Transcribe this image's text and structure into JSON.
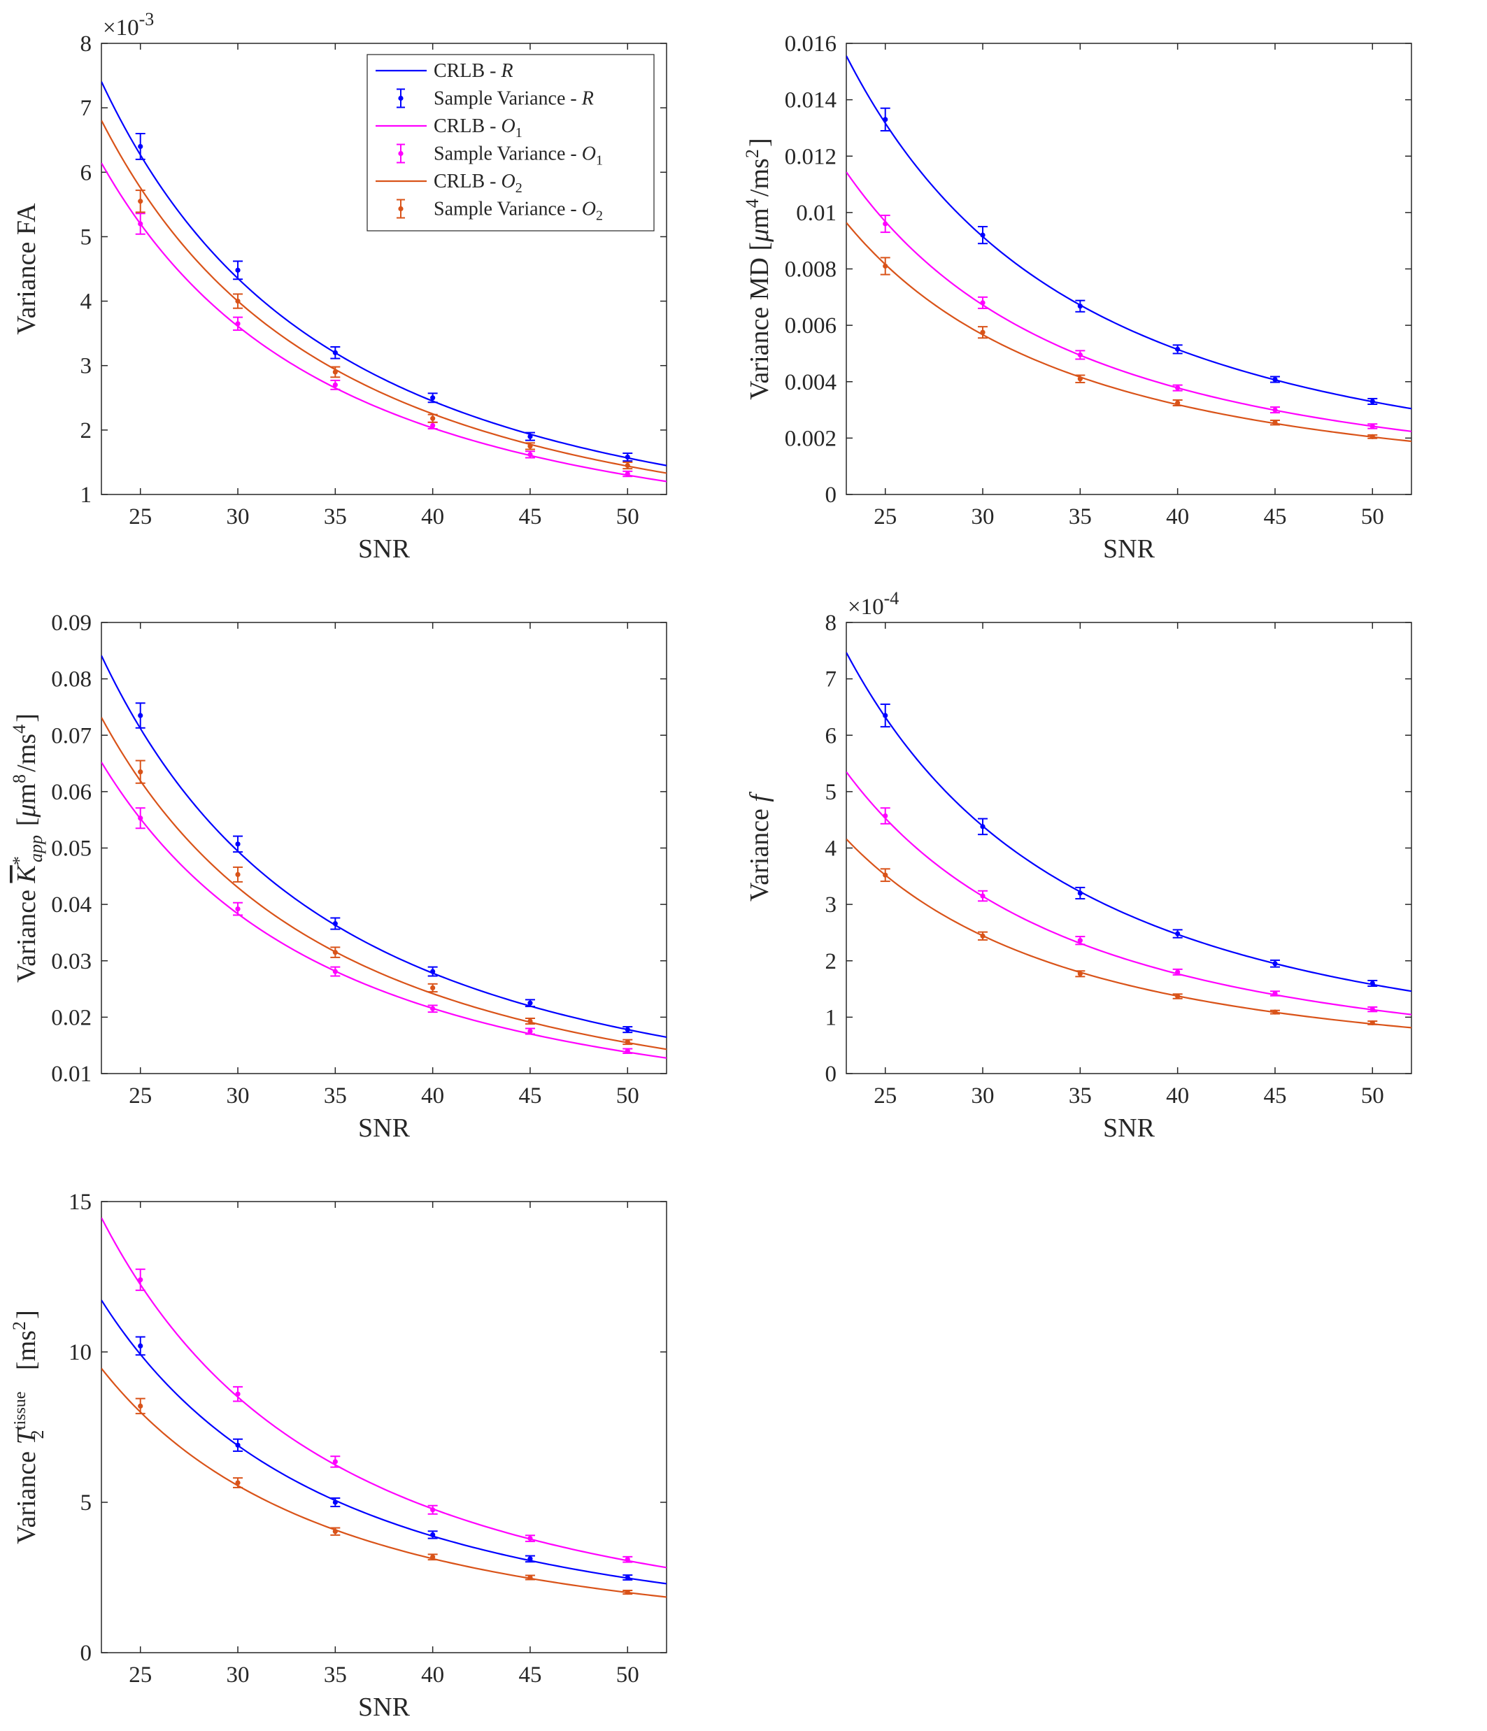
{
  "series_styles": [
    {
      "key": "R",
      "color": "#0000FF"
    },
    {
      "key": "O1",
      "color": "#FF00FF"
    },
    {
      "key": "O2",
      "color": "#D95319"
    }
  ],
  "legend": {
    "entries": [
      {
        "prefix": "CRLB - ",
        "sym": "R",
        "sub": "",
        "kind": "line",
        "series": 0
      },
      {
        "prefix": "Sample Variance - ",
        "sym": "R",
        "sub": "",
        "kind": "errorbar",
        "series": 0
      },
      {
        "prefix": "CRLB - ",
        "sym": "O",
        "sub": "1",
        "kind": "line",
        "series": 1
      },
      {
        "prefix": "Sample Variance - ",
        "sym": "O",
        "sub": "1",
        "kind": "errorbar",
        "series": 1
      },
      {
        "prefix": "CRLB - ",
        "sym": "O",
        "sub": "2",
        "kind": "line",
        "series": 2
      },
      {
        "prefix": "Sample Variance - ",
        "sym": "O",
        "sub": "2",
        "kind": "errorbar",
        "series": 2
      }
    ]
  },
  "chart_data": [
    {
      "type": "line",
      "id": "fa",
      "xlabel": "SNR",
      "ylabel_parts": [
        {
          "t": "Variance FA"
        }
      ],
      "xlim": [
        23,
        52
      ],
      "ylim": [
        1,
        8
      ],
      "xticks": [
        25,
        30,
        35,
        40,
        45,
        50
      ],
      "yticks": [
        1,
        2,
        3,
        4,
        5,
        6,
        7,
        8
      ],
      "ytick_labels": [
        "1",
        "2",
        "3",
        "4",
        "5",
        "6",
        "7",
        "8"
      ],
      "exponent": "-3",
      "has_legend": true,
      "snr_points": [
        25,
        30,
        35,
        40,
        45,
        50
      ],
      "series": [
        {
          "name": "R",
          "crlb_coef": 3918,
          "sample": [
            6.4,
            4.48,
            3.2,
            2.5,
            1.9,
            1.58
          ],
          "err": [
            0.2,
            0.14,
            0.09,
            0.07,
            0.06,
            0.06
          ]
        },
        {
          "name": "O1",
          "crlb_coef": 3250,
          "sample": [
            5.2,
            3.65,
            2.7,
            2.07,
            1.62,
            1.32
          ],
          "err": [
            0.16,
            0.1,
            0.07,
            0.05,
            0.05,
            0.04
          ]
        },
        {
          "name": "O2",
          "crlb_coef": 3600,
          "sample": [
            5.55,
            4.0,
            2.9,
            2.18,
            1.75,
            1.45
          ],
          "err": [
            0.17,
            0.11,
            0.08,
            0.06,
            0.05,
            0.05
          ]
        }
      ]
    },
    {
      "type": "line",
      "id": "md",
      "xlabel": "SNR",
      "ylabel_parts": [
        {
          "t": "Variance MD [",
          "i": false
        },
        {
          "t": "μ",
          "i": true
        },
        {
          "t": "m",
          "i": false
        },
        {
          "t": "4",
          "sup": true
        },
        {
          "t": "/ms",
          "i": false
        },
        {
          "t": "2",
          "sup": true
        },
        {
          "t": "]",
          "i": false
        }
      ],
      "xlim": [
        23,
        52
      ],
      "ylim": [
        0,
        0.016
      ],
      "xticks": [
        25,
        30,
        35,
        40,
        45,
        50
      ],
      "yticks": [
        0,
        0.002,
        0.004,
        0.006,
        0.008,
        0.01,
        0.012,
        0.014,
        0.016
      ],
      "ytick_labels": [
        "0",
        "0.002",
        "0.004",
        "0.006",
        "0.008",
        "0.01",
        "0.012",
        "0.014",
        "0.016"
      ],
      "exponent": "",
      "has_legend": false,
      "snr_points": [
        25,
        30,
        35,
        40,
        45,
        50
      ],
      "series": [
        {
          "name": "R",
          "crlb_coef": 8.23,
          "sample": [
            0.0133,
            0.0092,
            0.00668,
            0.00515,
            0.00408,
            0.0033
          ],
          "err": [
            0.0004,
            0.0003,
            0.0002,
            0.00015,
            0.0001,
            0.0001
          ]
        },
        {
          "name": "O1",
          "crlb_coef": 6.05,
          "sample": [
            0.0096,
            0.0068,
            0.00495,
            0.00378,
            0.003,
            0.00242
          ],
          "err": [
            0.0003,
            0.0002,
            0.00015,
            0.0001,
            0.0001,
            8e-05
          ]
        },
        {
          "name": "O2",
          "crlb_coef": 5.1,
          "sample": [
            0.0081,
            0.00575,
            0.0041,
            0.00325,
            0.00255,
            0.00205
          ],
          "err": [
            0.0003,
            0.0002,
            0.00013,
            0.0001,
            8e-05,
            6e-05
          ]
        }
      ]
    },
    {
      "type": "line",
      "id": "kapp",
      "xlabel": "SNR",
      "ylabel_parts": [
        {
          "t": "Variance ",
          "i": false
        },
        {
          "t": "K",
          "i": true,
          "bar": true
        },
        {
          "t": "*",
          "sup": true
        },
        {
          "t": "app",
          "sub": true,
          "i": true
        },
        {
          "t": "  [",
          "i": false
        },
        {
          "t": "μ",
          "i": true
        },
        {
          "t": "m",
          "i": false
        },
        {
          "t": "8",
          "sup": true
        },
        {
          "t": "/ms",
          "i": false
        },
        {
          "t": "4",
          "sup": true
        },
        {
          "t": "]",
          "i": false
        }
      ],
      "xlim": [
        23,
        52
      ],
      "ylim": [
        0.01,
        0.09
      ],
      "xticks": [
        25,
        30,
        35,
        40,
        45,
        50
      ],
      "yticks": [
        0.01,
        0.02,
        0.03,
        0.04,
        0.05,
        0.06,
        0.07,
        0.08,
        0.09
      ],
      "ytick_labels": [
        "0.01",
        "0.02",
        "0.03",
        "0.04",
        "0.05",
        "0.06",
        "0.07",
        "0.08",
        "0.09"
      ],
      "exponent": "",
      "has_legend": false,
      "snr_points": [
        25,
        30,
        35,
        40,
        45,
        50
      ],
      "series": [
        {
          "name": "R",
          "crlb_coef": 44.5,
          "sample": [
            0.0735,
            0.0507,
            0.0366,
            0.0281,
            0.0225,
            0.0178
          ],
          "err": [
            0.0022,
            0.0014,
            0.001,
            0.0008,
            0.0006,
            0.0005
          ]
        },
        {
          "name": "O1",
          "crlb_coef": 34.5,
          "sample": [
            0.0553,
            0.0392,
            0.0281,
            0.0215,
            0.0175,
            0.014
          ],
          "err": [
            0.0018,
            0.0011,
            0.0008,
            0.0006,
            0.0005,
            0.0004
          ]
        },
        {
          "name": "O2",
          "crlb_coef": 38.7,
          "sample": [
            0.0635,
            0.0453,
            0.0315,
            0.0252,
            0.0193,
            0.0156
          ],
          "err": [
            0.002,
            0.0013,
            0.0009,
            0.0007,
            0.0005,
            0.0004
          ]
        }
      ]
    },
    {
      "type": "line",
      "id": "f",
      "xlabel": "SNR",
      "ylabel_parts": [
        {
          "t": "Variance ",
          "i": false
        },
        {
          "t": "f",
          "i": true
        }
      ],
      "xlim": [
        23,
        52
      ],
      "ylim": [
        0,
        8
      ],
      "xticks": [
        25,
        30,
        35,
        40,
        45,
        50
      ],
      "yticks": [
        0,
        1,
        2,
        3,
        4,
        5,
        6,
        7,
        8
      ],
      "ytick_labels": [
        "0",
        "1",
        "2",
        "3",
        "4",
        "5",
        "6",
        "7",
        "8"
      ],
      "exponent": "-4",
      "has_legend": false,
      "snr_points": [
        25,
        30,
        35,
        40,
        45,
        50
      ],
      "series": [
        {
          "name": "R",
          "crlb_coef": 3950,
          "sample": [
            6.35,
            4.38,
            3.2,
            2.48,
            1.95,
            1.6
          ],
          "err": [
            0.2,
            0.14,
            0.1,
            0.07,
            0.06,
            0.05
          ]
        },
        {
          "name": "O1",
          "crlb_coef": 2830,
          "sample": [
            4.57,
            3.15,
            2.36,
            1.8,
            1.42,
            1.14
          ],
          "err": [
            0.14,
            0.09,
            0.07,
            0.05,
            0.04,
            0.04
          ]
        },
        {
          "name": "O2",
          "crlb_coef": 2200,
          "sample": [
            3.52,
            2.44,
            1.77,
            1.37,
            1.09,
            0.9
          ],
          "err": [
            0.11,
            0.07,
            0.05,
            0.04,
            0.03,
            0.03
          ]
        }
      ]
    },
    {
      "type": "line",
      "id": "t2",
      "xlabel": "SNR",
      "ylabel_parts": [
        {
          "t": "Variance ",
          "i": false
        },
        {
          "t": "T",
          "i": true
        },
        {
          "t": "tissue",
          "supsub": "2"
        },
        {
          "t": " [ms",
          "i": false
        },
        {
          "t": "2",
          "sup": true
        },
        {
          "t": "]",
          "i": false
        }
      ],
      "xlim": [
        23,
        52
      ],
      "ylim": [
        0,
        15
      ],
      "xticks": [
        25,
        30,
        35,
        40,
        45,
        50
      ],
      "yticks": [
        0,
        5,
        10,
        15
      ],
      "ytick_labels": [
        "0",
        "5",
        "10",
        "15"
      ],
      "exponent": "",
      "has_legend": false,
      "snr_points": [
        25,
        30,
        35,
        40,
        45,
        50
      ],
      "series": [
        {
          "name": "R",
          "crlb_coef": 6200,
          "sample": [
            10.2,
            6.9,
            5.0,
            3.92,
            3.12,
            2.5
          ],
          "err": [
            0.3,
            0.2,
            0.14,
            0.12,
            0.1,
            0.08
          ]
        },
        {
          "name": "O1",
          "crlb_coef": 7650,
          "sample": [
            12.4,
            8.6,
            6.35,
            4.75,
            3.8,
            3.1
          ],
          "err": [
            0.35,
            0.24,
            0.18,
            0.14,
            0.1,
            0.09
          ]
        },
        {
          "name": "O2",
          "crlb_coef": 5000,
          "sample": [
            8.2,
            5.65,
            4.03,
            3.18,
            2.5,
            2.01
          ],
          "err": [
            0.25,
            0.16,
            0.12,
            0.09,
            0.07,
            0.06
          ]
        }
      ]
    }
  ]
}
